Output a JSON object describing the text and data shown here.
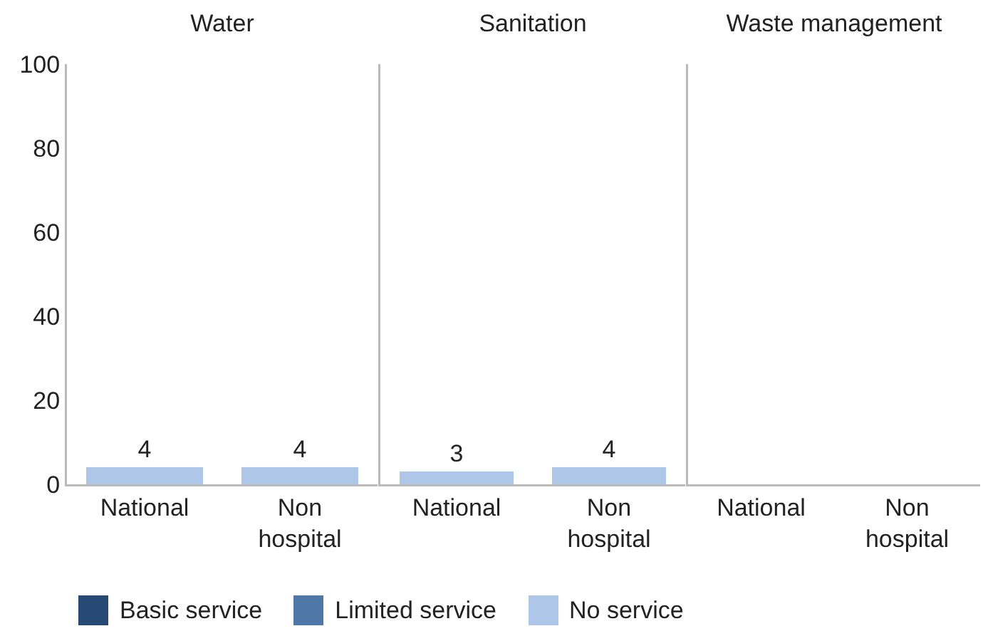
{
  "chart_data": [
    {
      "type": "bar",
      "title": "Water",
      "stacked": true,
      "categories": [
        "National",
        "Non hospital"
      ],
      "ylim": [
        0,
        100
      ],
      "yticks": [
        0,
        20,
        40,
        60,
        80,
        100
      ],
      "grid": false,
      "legend": "bottom",
      "series": [
        {
          "name": "Basic service",
          "color": "#264a73",
          "values": [
            null,
            null
          ]
        },
        {
          "name": "Limited service",
          "color": "#4d78a8",
          "values": [
            null,
            null
          ]
        },
        {
          "name": "No service",
          "color": "#aec6e8",
          "values": [
            4,
            4
          ],
          "value_labels": [
            "4",
            "4"
          ]
        }
      ]
    },
    {
      "type": "bar",
      "title": "Sanitation",
      "stacked": true,
      "categories": [
        "National",
        "Non hospital"
      ],
      "ylim": [
        0,
        100
      ],
      "tick_labels": "x",
      "grid": false,
      "legend": false,
      "series": [
        {
          "color": "#264a73",
          "values": [
            null,
            null
          ]
        },
        {
          "color": "#4d78a8",
          "values": [
            null,
            null
          ]
        },
        {
          "color": "#aec6e8",
          "values": [
            3,
            4
          ],
          "value_labels": [
            "3",
            "4"
          ]
        }
      ]
    },
    {
      "type": "bar",
      "title": "Waste management",
      "stacked": true,
      "categories": [
        "National",
        "Non hospital"
      ],
      "ylim": [
        0,
        100
      ],
      "tick_labels": "x",
      "grid": false,
      "legend": false,
      "series": [
        {
          "color": "#264a73",
          "values": [
            null,
            null
          ]
        },
        {
          "color": "#4d78a8",
          "values": [
            null,
            null
          ]
        },
        {
          "color": "#aec6e8",
          "values": [
            null,
            null
          ]
        }
      ]
    }
  ]
}
